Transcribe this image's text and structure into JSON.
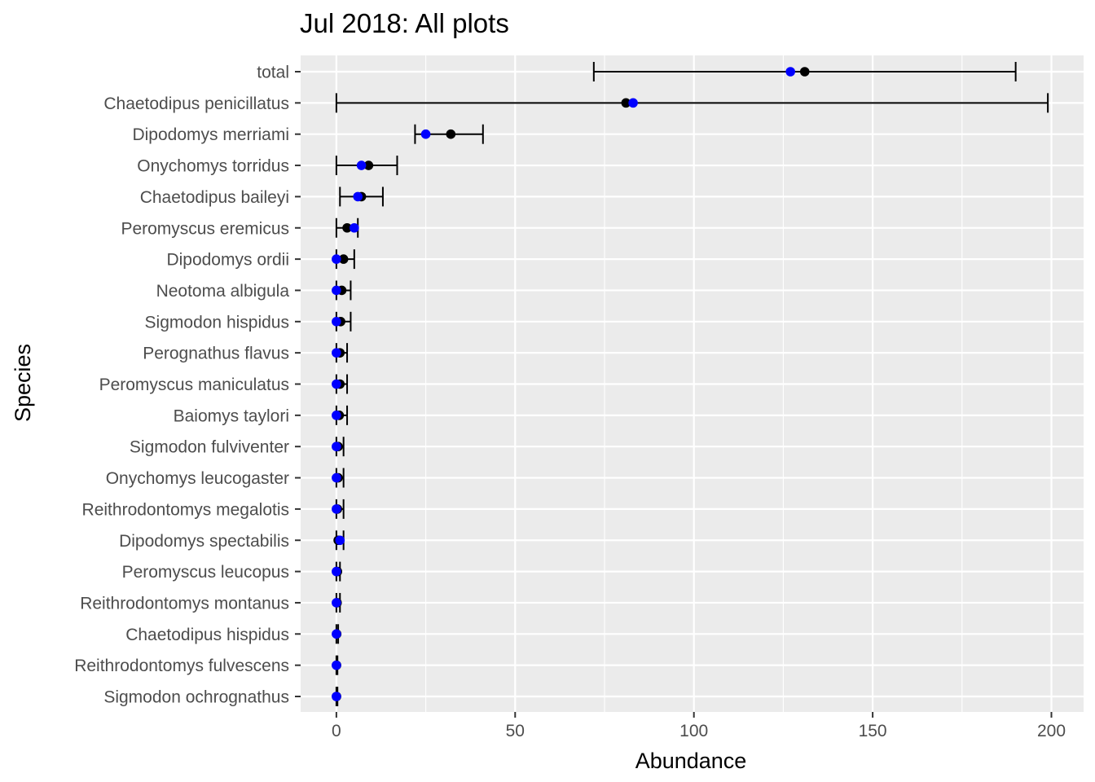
{
  "chart_data": {
    "type": "scatter",
    "title": "Jul 2018: All plots",
    "xlabel": "Abundance",
    "ylabel": "Species",
    "xlim": [
      -10,
      209
    ],
    "x_ticks": [
      0,
      50,
      100,
      150,
      200
    ],
    "grid": true,
    "legend": "none",
    "colors": {
      "panel": "#ebebeb",
      "grid": "#ffffff",
      "predicted": "#000000",
      "observed": "#0000ff",
      "tick_text": "#4d4d4d"
    },
    "categories": [
      "total",
      "Chaetodipus penicillatus",
      "Dipodomys merriami",
      "Onychomys torridus",
      "Chaetodipus baileyi",
      "Peromyscus eremicus",
      "Dipodomys ordii",
      "Neotoma albigula",
      "Sigmodon hispidus",
      "Perognathus flavus",
      "Peromyscus maniculatus",
      "Baiomys taylori",
      "Sigmodon fulviventer",
      "Onychomys leucogaster",
      "Reithrodontomys megalotis",
      "Dipodomys spectabilis",
      "Peromyscus leucopus",
      "Reithrodontomys montanus",
      "Chaetodipus hispidus",
      "Reithrodontomys fulvescens",
      "Sigmodon ochrognathus"
    ],
    "series": [
      {
        "values": [
          131,
          81,
          32,
          9,
          7,
          3,
          2,
          1.5,
          1.2,
          1,
          1,
          0.8,
          0.5,
          0.5,
          0.3,
          0.5,
          0.3,
          0.2,
          0.1,
          0.05,
          0.05
        ],
        "lower": [
          72,
          0,
          22,
          0,
          1,
          0,
          0,
          0,
          0,
          0,
          0,
          0,
          0,
          0,
          0,
          0,
          0,
          0,
          0,
          0,
          0
        ],
        "upper": [
          190,
          199,
          41,
          17,
          13,
          6,
          5,
          4,
          4,
          3,
          3,
          3,
          2,
          2,
          2,
          2,
          1,
          1,
          0.5,
          0.3,
          0.3
        ]
      },
      {
        "values": [
          127,
          83,
          25,
          7,
          6,
          5,
          0,
          0,
          0,
          0,
          0,
          0,
          0,
          0,
          0,
          1,
          0,
          0,
          0,
          0,
          0
        ]
      }
    ]
  }
}
